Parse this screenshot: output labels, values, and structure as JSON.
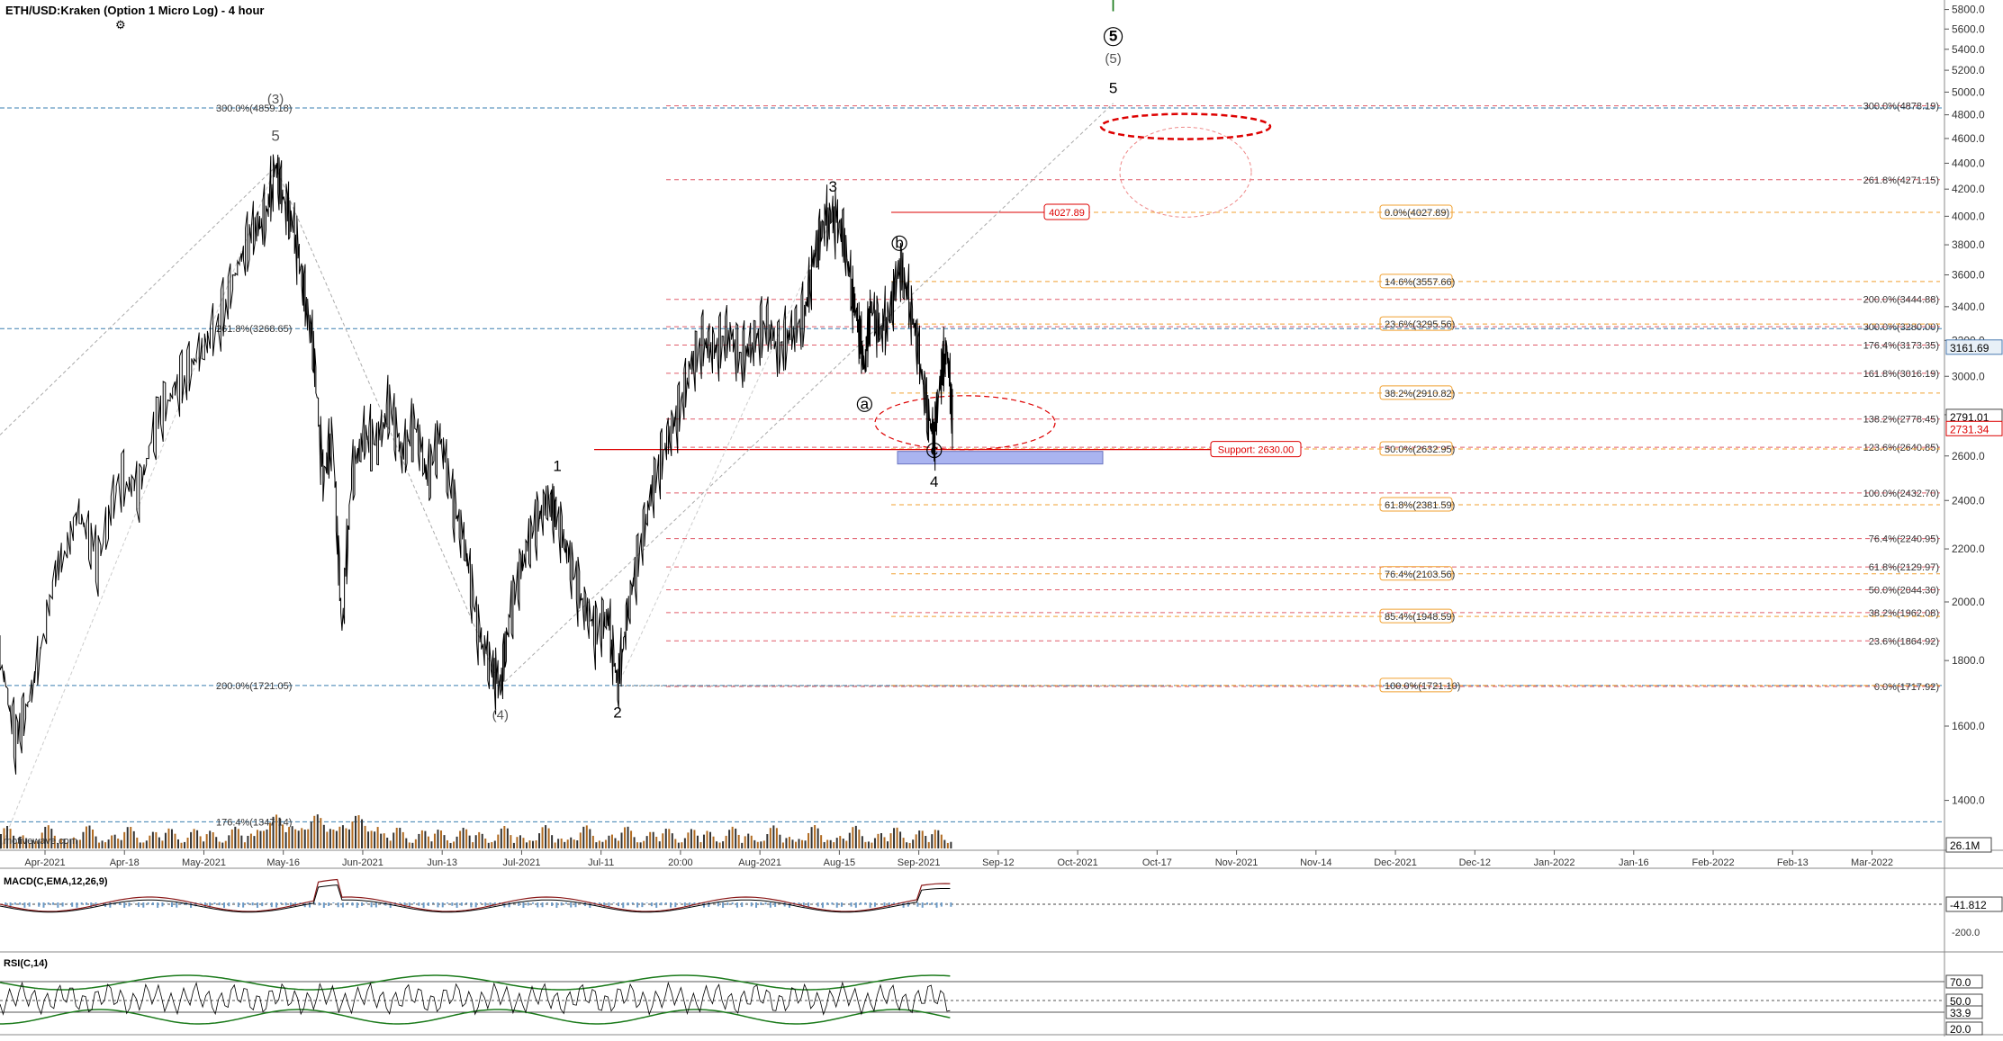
{
  "header": {
    "title": "ETH/USD:Kraken (Option 1 Micro Log) - 4 hour",
    "settings_icon": "gear-icon",
    "watermark": "motivewave.com"
  },
  "chart_data": {
    "type": "candlestick",
    "title": "ETH/USD:Kraken (Option 1 Micro Log) - 4 hour",
    "y_scale": "log",
    "ylim": [
      1280,
      5900
    ],
    "y_ticks": [
      1400,
      1600,
      1800,
      2000,
      2200,
      2400,
      2600,
      2800,
      3000,
      3200,
      3400,
      3600,
      3800,
      4000,
      4200,
      4400,
      4600,
      4800,
      5000,
      5200,
      5400,
      5600,
      5800
    ],
    "x_labels": [
      "Apr-2021",
      "Apr-18",
      "May-2021",
      "May-16",
      "Jun-2021",
      "Jun-13",
      "Jul-2021",
      "Jul-11",
      "20:00",
      "Aug-2021",
      "Aug-15",
      "Sep-2021",
      "Sep-12",
      "Oct-2021",
      "Oct-17",
      "Nov-2021",
      "Nov-14",
      "Dec-2021",
      "Dec-12",
      "Jan-2022",
      "Jan-16",
      "Feb-2022",
      "Feb-13",
      "Mar-2022"
    ],
    "price_path": [
      {
        "t": 0,
        "p": 1820
      },
      {
        "t": 10,
        "p": 1560
      },
      {
        "t": 20,
        "p": 1700
      },
      {
        "t": 35,
        "p": 2100
      },
      {
        "t": 50,
        "p": 2350
      },
      {
        "t": 62,
        "p": 2150
      },
      {
        "t": 75,
        "p": 2500
      },
      {
        "t": 88,
        "p": 2450
      },
      {
        "t": 100,
        "p": 2800
      },
      {
        "t": 112,
        "p": 2950
      },
      {
        "t": 124,
        "p": 3100
      },
      {
        "t": 138,
        "p": 3300
      },
      {
        "t": 150,
        "p": 3650
      },
      {
        "t": 160,
        "p": 3900
      },
      {
        "t": 168,
        "p": 4000
      },
      {
        "t": 174,
        "p": 4372
      },
      {
        "t": 180,
        "p": 4100
      },
      {
        "t": 186,
        "p": 3900
      },
      {
        "t": 192,
        "p": 3500
      },
      {
        "t": 198,
        "p": 3150
      },
      {
        "t": 204,
        "p": 2500
      },
      {
        "t": 210,
        "p": 2700
      },
      {
        "t": 216,
        "p": 1900
      },
      {
        "t": 222,
        "p": 2500
      },
      {
        "t": 230,
        "p": 2700
      },
      {
        "t": 238,
        "p": 2650
      },
      {
        "t": 246,
        "p": 2850
      },
      {
        "t": 254,
        "p": 2600
      },
      {
        "t": 262,
        "p": 2750
      },
      {
        "t": 270,
        "p": 2500
      },
      {
        "t": 278,
        "p": 2700
      },
      {
        "t": 286,
        "p": 2400
      },
      {
        "t": 294,
        "p": 2200
      },
      {
        "t": 302,
        "p": 1900
      },
      {
        "t": 310,
        "p": 1780
      },
      {
        "t": 316,
        "p": 1720
      },
      {
        "t": 322,
        "p": 1950
      },
      {
        "t": 330,
        "p": 2150
      },
      {
        "t": 338,
        "p": 2300
      },
      {
        "t": 346,
        "p": 2400
      },
      {
        "t": 352,
        "p": 2330
      },
      {
        "t": 360,
        "p": 2150
      },
      {
        "t": 368,
        "p": 2000
      },
      {
        "t": 376,
        "p": 1900
      },
      {
        "t": 384,
        "p": 1950
      },
      {
        "t": 390,
        "p": 1720
      },
      {
        "t": 396,
        "p": 1950
      },
      {
        "t": 404,
        "p": 2200
      },
      {
        "t": 412,
        "p": 2450
      },
      {
        "t": 420,
        "p": 2650
      },
      {
        "t": 428,
        "p": 2800
      },
      {
        "t": 436,
        "p": 3050
      },
      {
        "t": 444,
        "p": 3200
      },
      {
        "t": 452,
        "p": 3150
      },
      {
        "t": 460,
        "p": 3250
      },
      {
        "t": 468,
        "p": 3100
      },
      {
        "t": 476,
        "p": 3200
      },
      {
        "t": 484,
        "p": 3300
      },
      {
        "t": 492,
        "p": 3150
      },
      {
        "t": 500,
        "p": 3250
      },
      {
        "t": 508,
        "p": 3350
      },
      {
        "t": 514,
        "p": 3700
      },
      {
        "t": 520,
        "p": 3950
      },
      {
        "t": 526,
        "p": 4000
      },
      {
        "t": 532,
        "p": 3900
      },
      {
        "t": 538,
        "p": 3500
      },
      {
        "t": 542,
        "p": 3300
      },
      {
        "t": 546,
        "p": 3050
      },
      {
        "t": 550,
        "p": 3400
      },
      {
        "t": 556,
        "p": 3250
      },
      {
        "t": 562,
        "p": 3350
      },
      {
        "t": 568,
        "p": 3670
      },
      {
        "t": 574,
        "p": 3450
      },
      {
        "t": 580,
        "p": 3150
      },
      {
        "t": 586,
        "p": 2800
      },
      {
        "t": 590,
        "p": 2680
      },
      {
        "t": 594,
        "p": 3000
      },
      {
        "t": 598,
        "p": 3160
      },
      {
        "t": 602,
        "p": 2750
      }
    ],
    "price_t_max": 1228,
    "current_price": "3161.69",
    "price_markers": [
      {
        "label": "2791.01",
        "value": 2791.01,
        "style": "dark"
      },
      {
        "label": "2731.34",
        "value": 2731.34,
        "style": "red"
      }
    ],
    "volume_label": "26.1M",
    "fib_left": [
      {
        "label": "300.0%(4859.18)",
        "value": 4859.18,
        "color": "#3a7fb0"
      },
      {
        "label": "261.8%(3268.65)",
        "value": 3268.65,
        "color": "#3a7fb0"
      },
      {
        "label": "200.0%(1721.05)",
        "value": 1721.05,
        "color": "#3a7fb0"
      },
      {
        "label": "176.4%(1347.14)",
        "value": 1347.14,
        "color": "#3a7fb0"
      }
    ],
    "fib_right": [
      {
        "label": "300.0%(4878.19)",
        "value": 4878.19
      },
      {
        "label": "261.8%(4271.15)",
        "value": 4271.15
      },
      {
        "label": "200.0%(3444.88)",
        "value": 3444.88
      },
      {
        "label": "300.0%(3280.00)",
        "value": 3280.0
      },
      {
        "label": "176.4%(3173.35)",
        "value": 3173.35
      },
      {
        "label": "161.8%(3016.19)",
        "value": 3016.19
      },
      {
        "label": "138.2%(2778.45)",
        "value": 2778.45
      },
      {
        "label": "123.6%(2640.85)",
        "value": 2640.85
      },
      {
        "label": "100.0%(2432.70)",
        "value": 2432.7
      },
      {
        "label": "76.4%(2240.95)",
        "value": 2240.95
      },
      {
        "label": "61.8%(2129.97)",
        "value": 2129.97
      },
      {
        "label": "50.0%(2044.30)",
        "value": 2044.3
      },
      {
        "label": "38.2%(1962.08)",
        "value": 1962.08
      },
      {
        "label": "23.6%(1864.92)",
        "value": 1864.92
      },
      {
        "label": "0.0%(1717.92)",
        "value": 1717.92
      }
    ],
    "fib_middle": [
      {
        "label": "0.0%(4027.89)",
        "value": 4027.89
      },
      {
        "label": "14.6%(3557.66)",
        "value": 3557.66
      },
      {
        "label": "23.6%(3295.56)",
        "value": 3295.56
      },
      {
        "label": "38.2%(2910.82)",
        "value": 2910.82
      },
      {
        "label": "50.0%(2632.95)",
        "value": 2632.95
      },
      {
        "label": "61.8%(2381.59)",
        "value": 2381.59
      },
      {
        "label": "76.4%(2103.56)",
        "value": 2103.56
      },
      {
        "label": "85.4%(1948.59)",
        "value": 1948.59
      },
      {
        "label": "100.0%(1721.10)",
        "value": 1721.1
      }
    ],
    "red_boxes": [
      {
        "label": "4027.89",
        "value": 4027.89
      },
      {
        "label": "Support: 2630.00",
        "value": 2630.0
      }
    ],
    "wave_labels": [
      {
        "text": "(3)",
        "t": 174,
        "p": 4900,
        "color": "#555"
      },
      {
        "text": "5",
        "t": 174,
        "p": 4580,
        "color": "#555"
      },
      {
        "text": "(4)",
        "t": 316,
        "p": 1620,
        "color": "#555"
      },
      {
        "text": "1",
        "t": 352,
        "p": 2530,
        "color": "#000"
      },
      {
        "text": "2",
        "t": 390,
        "p": 1625,
        "color": "#000"
      },
      {
        "text": "3",
        "t": 526,
        "p": 4180,
        "color": "#000"
      },
      {
        "text": "a",
        "t": 546,
        "p": 2830,
        "color": "#000",
        "circled": true
      },
      {
        "text": "b",
        "t": 568,
        "p": 3780,
        "color": "#000",
        "circled": true
      },
      {
        "text": "c",
        "t": 590,
        "p": 2605,
        "color": "#000",
        "circled": true
      },
      {
        "text": "4",
        "t": 590,
        "p": 2460,
        "color": "#000"
      },
      {
        "text": "5",
        "t": 703,
        "p": 4990,
        "color": "#000"
      },
      {
        "text": "(5)",
        "t": 703,
        "p": 5270,
        "color": "#555"
      },
      {
        "text": "5",
        "t": 703,
        "p": 5480,
        "color": "#000",
        "circled": true
      },
      {
        "text": "I",
        "t": 703,
        "p": 5780,
        "color": "#1a7a1a"
      }
    ],
    "macd": {
      "title": "MACD(C,EMA,12,26,9)",
      "current": "-41.812",
      "tick": "-200.0"
    },
    "rsi": {
      "title": "RSI(C,14)",
      "ticks": [
        "70.0",
        "50.0",
        "33.9",
        "20.0"
      ]
    }
  }
}
